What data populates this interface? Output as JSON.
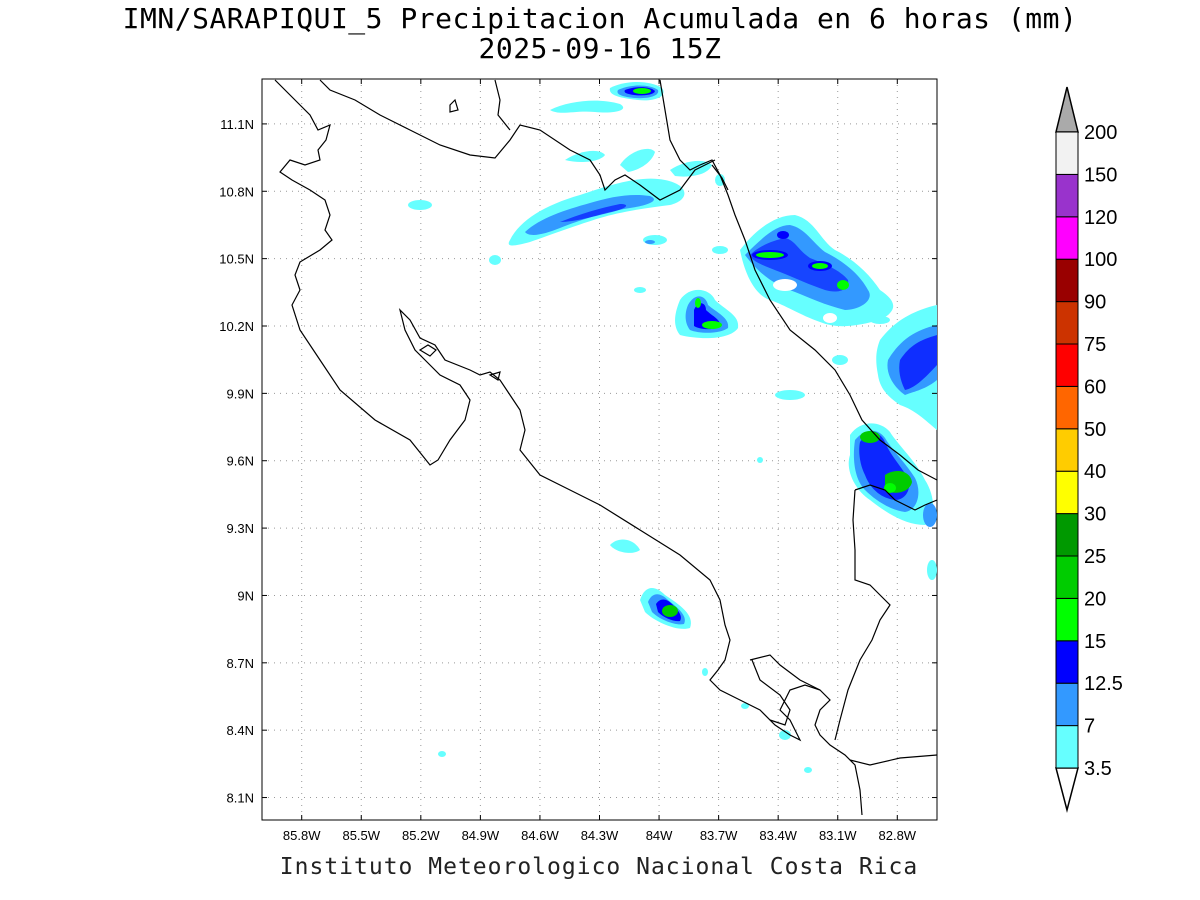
{
  "title_line1": "IMN/SARAPIQUI_5 Precipitacion Acumulada en 6 horas (mm)",
  "title_line2": "2025-09-16 15Z",
  "footer": "Instituto Meteorologico Nacional Costa Rica",
  "map": {
    "lon_range": [
      -86.0,
      -82.6
    ],
    "lat_range": [
      8.0,
      11.3
    ],
    "lon_ticks": [
      "85.8W",
      "85.5W",
      "85.2W",
      "84.9W",
      "84.6W",
      "84.3W",
      "84W",
      "83.7W",
      "83.4W",
      "83.1W",
      "82.8W"
    ],
    "lat_ticks": [
      "11.1N",
      "10.8N",
      "10.5N",
      "10.2N",
      "9.9N",
      "9.6N",
      "9.3N",
      "9N",
      "8.7N",
      "8.4N",
      "8.1N"
    ],
    "grid": true
  },
  "colorbar": {
    "levels": [
      "3.5",
      "7",
      "12.5",
      "15",
      "20",
      "25",
      "30",
      "40",
      "50",
      "60",
      "75",
      "90",
      "100",
      "120",
      "150",
      "200"
    ],
    "colors": [
      "#66ffff",
      "#3399ff",
      "#0000ff",
      "#00ff00",
      "#00cc00",
      "#009900",
      "#ffff00",
      "#ffcc00",
      "#ff6600",
      "#ff0000",
      "#cc3300",
      "#990000",
      "#ff00ff",
      "#9933cc",
      "#f2f2f2",
      "#aaaaaa"
    ],
    "below_color": "#ffffff",
    "above_color": "#aaaaaa"
  }
}
